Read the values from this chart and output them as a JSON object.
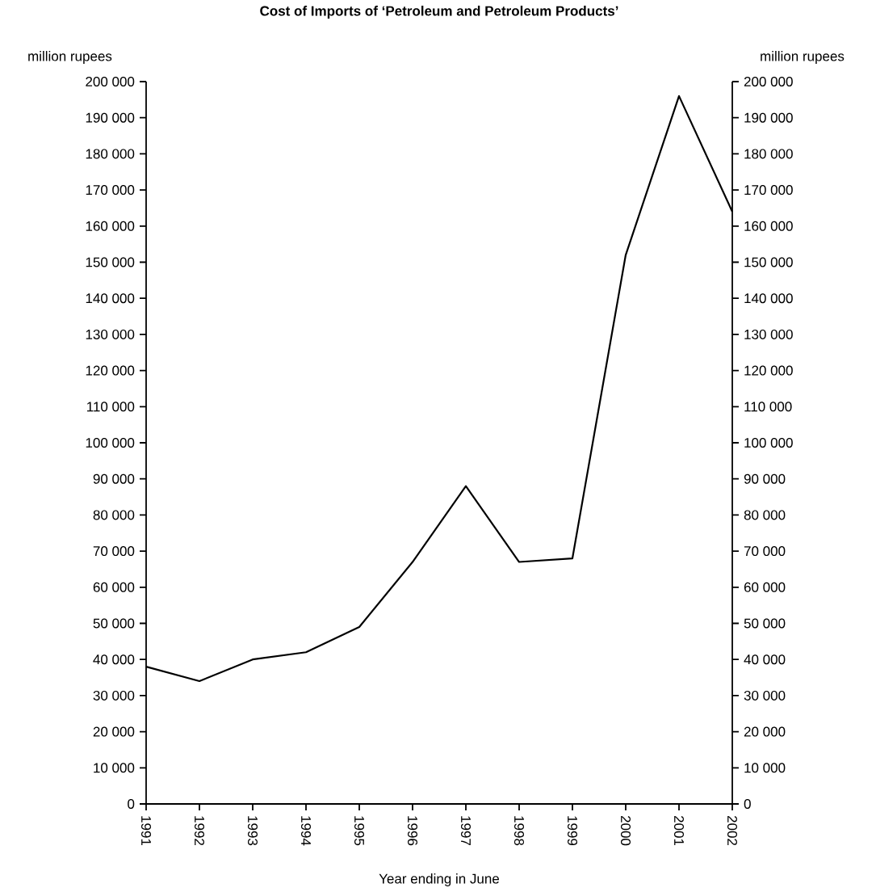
{
  "chart_data": {
    "type": "line",
    "title": "Cost of Imports of ‘Petroleum and Petroleum Products’",
    "xlabel": "Year ending in June",
    "annotations": [
      "million rupees",
      "million rupees"
    ],
    "x": [
      1991,
      1992,
      1993,
      1994,
      1995,
      1996,
      1997,
      1998,
      1999,
      2000,
      2001,
      2002
    ],
    "values": [
      38000,
      34000,
      40000,
      42000,
      49000,
      67000,
      88000,
      67000,
      68000,
      152000,
      196000,
      164000
    ],
    "color": "#000000",
    "xlim": [
      1991,
      2002
    ],
    "xticks": [
      1991,
      1992,
      1993,
      1994,
      1995,
      1996,
      1997,
      1998,
      1999,
      2000,
      2001,
      2002
    ],
    "ylim": [
      0,
      200000
    ],
    "yticks": [
      0,
      {
        "value": 10000,
        "label": "10 000"
      },
      {
        "value": 20000,
        "label": "20 000"
      },
      {
        "value": 30000,
        "label": "30 000"
      },
      {
        "value": 40000,
        "label": "40 000"
      },
      {
        "value": 50000,
        "label": "50 000"
      },
      {
        "value": 60000,
        "label": "60 000"
      },
      {
        "value": 70000,
        "label": "70 000"
      },
      {
        "value": 80000,
        "label": "80 000"
      },
      {
        "value": 90000,
        "label": "90 000"
      },
      {
        "value": 100000,
        "label": "100 000"
      },
      {
        "value": 110000,
        "label": "110 000"
      },
      {
        "value": 120000,
        "label": "120 000"
      },
      {
        "value": 130000,
        "label": "130 000"
      },
      {
        "value": 140000,
        "label": "140 000"
      },
      {
        "value": 150000,
        "label": "150 000"
      },
      {
        "value": 160000,
        "label": "160 000"
      },
      {
        "value": 170000,
        "label": "170 000"
      },
      {
        "value": 180000,
        "label": "180 000"
      },
      {
        "value": 190000,
        "label": "190 000"
      },
      {
        "value": 200000,
        "label": "200 000"
      }
    ],
    "y2lim": [
      0,
      200000
    ],
    "y2ticks": [
      0,
      {
        "value": 10000,
        "label": "10 000"
      },
      {
        "value": 20000,
        "label": "20 000"
      },
      {
        "value": 30000,
        "label": "30 000"
      },
      {
        "value": 40000,
        "label": "40 000"
      },
      {
        "value": 50000,
        "label": "50 000"
      },
      {
        "value": 60000,
        "label": "60 000"
      },
      {
        "value": 70000,
        "label": "70 000"
      },
      {
        "value": 80000,
        "label": "80 000"
      },
      {
        "value": 90000,
        "label": "90 000"
      },
      {
        "value": 100000,
        "label": "100 000"
      },
      {
        "value": 110000,
        "label": "110 000"
      },
      {
        "value": 120000,
        "label": "120 000"
      },
      {
        "value": 130000,
        "label": "130 000"
      },
      {
        "value": 140000,
        "label": "140 000"
      },
      {
        "value": 150000,
        "label": "150 000"
      },
      {
        "value": 160000,
        "label": "160 000"
      },
      {
        "value": 170000,
        "label": "170 000"
      },
      {
        "value": 180000,
        "label": "180 000"
      },
      {
        "value": 190000,
        "label": "190 000"
      },
      {
        "value": 200000,
        "label": "200 000"
      }
    ]
  }
}
